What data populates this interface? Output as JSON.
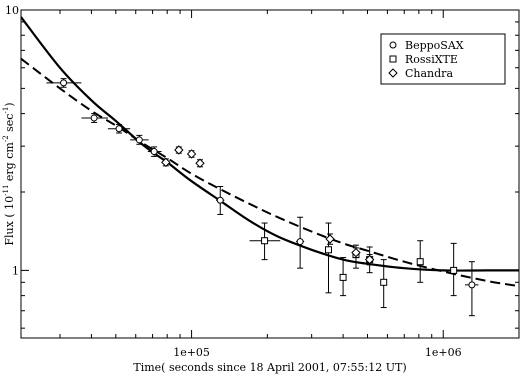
{
  "chart_data": {
    "type": "scatter",
    "xlabel": "Time( seconds since 18 April 2001, 07:55:12 UT)",
    "ylabel_parts": {
      "pre": "Flux ( 10",
      "exp1": "-11",
      "mid": " erg cm",
      "exp2": "-2",
      "post": " sec",
      "exp3": "-1",
      "end": ")"
    },
    "x_scale": "log",
    "y_scale": "log",
    "xlim": [
      21000,
      2000000
    ],
    "ylim": [
      0.55,
      10
    ],
    "x_ticks": [
      {
        "value": 100000,
        "label": "1e+05"
      },
      {
        "value": 1000000,
        "label": "1e+06"
      }
    ],
    "y_ticks": [
      {
        "value": 1,
        "label": "1"
      },
      {
        "value": 10,
        "label": "10"
      }
    ],
    "legend_position": "top-right",
    "legend": [
      {
        "name": "BeppoSAX",
        "marker": "circle"
      },
      {
        "name": "RossiXTE",
        "marker": "square"
      },
      {
        "name": "Chandra",
        "marker": "diamond"
      }
    ],
    "series": [
      {
        "name": "BeppoSAX",
        "marker": "circle",
        "points": [
          {
            "x": 31000,
            "y": 5.25,
            "xerr": [
              26500,
              36500
            ],
            "yerr": [
              5.05,
              5.45
            ]
          },
          {
            "x": 41000,
            "y": 3.85,
            "xerr": [
              36500,
              46500
            ],
            "yerr": [
              3.7,
              4.0
            ]
          },
          {
            "x": 51500,
            "y": 3.5,
            "xerr": [
              46500,
              57000
            ],
            "yerr": [
              3.37,
              3.63
            ]
          },
          {
            "x": 62000,
            "y": 3.17,
            "xerr": [
              57000,
              67500
            ],
            "yerr": [
              3.05,
              3.3
            ]
          },
          {
            "x": 71000,
            "y": 2.86,
            "xerr": [
              67000,
              76000
            ],
            "yerr": [
              2.74,
              2.98
            ]
          },
          {
            "x": 130000,
            "y": 1.86,
            "xerr": [
              125000,
              135000
            ],
            "yerr": [
              1.64,
              2.1
            ]
          },
          {
            "x": 270000,
            "y": 1.29,
            "xerr": [
              260000,
              280000
            ],
            "yerr": [
              1.02,
              1.6
            ]
          },
          {
            "x": 1300000,
            "y": 0.88,
            "xerr": [
              1220000,
              1380000
            ],
            "yerr": [
              0.67,
              1.08
            ]
          }
        ]
      },
      {
        "name": "RossiXTE",
        "marker": "square",
        "points": [
          {
            "x": 195000,
            "y": 1.3,
            "xerr": [
              170000,
              225000
            ],
            "yerr": [
              1.1,
              1.52
            ]
          },
          {
            "x": 350000,
            "y": 1.2,
            "xerr": [
              345000,
              355000
            ],
            "yerr": [
              0.82,
              1.52
            ]
          },
          {
            "x": 400000,
            "y": 0.94,
            "xerr": [
              395000,
              405000
            ],
            "yerr": [
              0.8,
              1.12
            ]
          },
          {
            "x": 450000,
            "y": 1.15,
            "xerr": [
              445000,
              455000
            ],
            "yerr": [
              1.02,
              1.25
            ]
          },
          {
            "x": 510000,
            "y": 1.1,
            "xerr": [
              505000,
              515000
            ],
            "yerr": [
              0.98,
              1.23
            ]
          },
          {
            "x": 580000,
            "y": 0.9,
            "xerr": [
              575000,
              585000
            ],
            "yerr": [
              0.72,
              1.1
            ]
          },
          {
            "x": 810000,
            "y": 1.08,
            "xerr": [
              805000,
              815000
            ],
            "yerr": [
              0.9,
              1.3
            ]
          },
          {
            "x": 1100000,
            "y": 1.0,
            "xerr": [
              1000000,
              1200000
            ],
            "yerr": [
              0.8,
              1.27
            ]
          }
        ]
      },
      {
        "name": "Chandra",
        "marker": "diamond",
        "points": [
          {
            "x": 79000,
            "y": 2.6,
            "xerr": [
              76000,
              82000
            ],
            "yerr": [
              2.52,
              2.68
            ]
          },
          {
            "x": 89000,
            "y": 2.9,
            "xerr": [
              86000,
              92000
            ],
            "yerr": [
              2.82,
              2.98
            ]
          },
          {
            "x": 100000,
            "y": 2.8,
            "xerr": [
              97000,
              103000
            ],
            "yerr": [
              2.72,
              2.88
            ]
          },
          {
            "x": 108000,
            "y": 2.58,
            "xerr": [
              105000,
              111000
            ],
            "yerr": [
              2.5,
              2.66
            ]
          },
          {
            "x": 355000,
            "y": 1.32,
            "xerr": [
              350000,
              360000
            ],
            "yerr": [
              1.26,
              1.38
            ]
          },
          {
            "x": 450000,
            "y": 1.17,
            "xerr": [
              445000,
              455000
            ],
            "yerr": [
              1.12,
              1.22
            ]
          },
          {
            "x": 510000,
            "y": 1.1,
            "xerr": [
              505000,
              515000
            ],
            "yerr": [
              1.05,
              1.15
            ]
          }
        ]
      }
    ],
    "models": [
      {
        "style": "solid",
        "points": [
          [
            21000,
            9.4
          ],
          [
            30000,
            6.0
          ],
          [
            40000,
            4.5
          ],
          [
            50000,
            3.75
          ],
          [
            65000,
            3.0
          ],
          [
            80000,
            2.6
          ],
          [
            100000,
            2.2
          ],
          [
            130000,
            1.85
          ],
          [
            170000,
            1.55
          ],
          [
            220000,
            1.35
          ],
          [
            300000,
            1.2
          ],
          [
            400000,
            1.1
          ],
          [
            500000,
            1.06
          ],
          [
            700000,
            1.02
          ],
          [
            1000000,
            1.0
          ],
          [
            1500000,
            1.0
          ],
          [
            2000000,
            1.0
          ]
        ]
      },
      {
        "style": "dashed",
        "points": [
          [
            21000,
            6.5
          ],
          [
            30000,
            5.0
          ],
          [
            40000,
            4.1
          ],
          [
            50000,
            3.6
          ],
          [
            65000,
            3.05
          ],
          [
            80000,
            2.7
          ],
          [
            100000,
            2.35
          ],
          [
            130000,
            2.05
          ],
          [
            170000,
            1.8
          ],
          [
            220000,
            1.6
          ],
          [
            300000,
            1.41
          ],
          [
            400000,
            1.27
          ],
          [
            500000,
            1.19
          ],
          [
            700000,
            1.08
          ],
          [
            1000000,
            0.99
          ],
          [
            1500000,
            0.91
          ],
          [
            2000000,
            0.87
          ]
        ]
      }
    ]
  }
}
